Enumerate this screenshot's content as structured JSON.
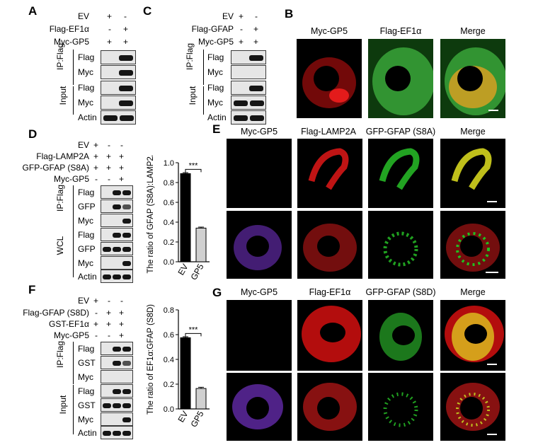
{
  "panels": {
    "A": "A",
    "B": "B",
    "C": "C",
    "D": "D",
    "E": "E",
    "F": "F",
    "G": "G"
  },
  "panel_a": {
    "rows": [
      "EV",
      "Flag-EF1α",
      "Myc-GP5"
    ],
    "signs": [
      [
        "+",
        "-"
      ],
      [
        "-",
        "+"
      ],
      [
        "+",
        "+"
      ]
    ],
    "sections": [
      "IP:Flag",
      "Input"
    ],
    "blots": [
      "Flag",
      "Myc",
      "Flag",
      "Myc",
      "Actin"
    ]
  },
  "panel_c": {
    "rows": [
      "EV",
      "Flag-GFAP",
      "Myc-GP5"
    ],
    "signs": [
      [
        "+",
        "-"
      ],
      [
        "-",
        "+"
      ],
      [
        "+",
        "+"
      ]
    ],
    "sections": [
      "IP:Flag",
      "Input"
    ],
    "blots": [
      "Flag",
      "Myc",
      "Flag",
      "Myc",
      "Actin"
    ]
  },
  "panel_b": {
    "captions": [
      "Myc-GP5",
      "Flag-EF1α",
      "Merge"
    ]
  },
  "panel_d": {
    "rows": [
      "EV",
      "Flag-LAMP2A",
      "GFP-GFAP (S8A)",
      "Myc-GP5"
    ],
    "signs": [
      [
        "+",
        "-",
        "-"
      ],
      [
        "+",
        "+",
        "+"
      ],
      [
        "+",
        "+",
        "+"
      ],
      [
        "-",
        "-",
        "+"
      ]
    ],
    "sections": [
      "IP:Flag",
      "WCL"
    ],
    "blots": [
      "Flag",
      "GFP",
      "Myc",
      "Flag",
      "GFP",
      "Myc",
      "Actin"
    ]
  },
  "panel_e": {
    "captions": [
      "Myc-GP5",
      "Flag-LAMP2A",
      "GFP-GFAP (S8A)",
      "Merge"
    ]
  },
  "panel_f": {
    "rows": [
      "EV",
      "Flag-GFAP (S8D)",
      "GST-EF1α",
      "Myc-GP5"
    ],
    "signs": [
      [
        "+",
        "-",
        "-"
      ],
      [
        "-",
        "+",
        "+"
      ],
      [
        "+",
        "+",
        "+"
      ],
      [
        "-",
        "-",
        "+"
      ]
    ],
    "sections": [
      "IP:Flag",
      "Input"
    ],
    "blots": [
      "Flag",
      "GST",
      "Myc",
      "Flag",
      "GST",
      "Myc",
      "Actin"
    ]
  },
  "panel_g": {
    "captions": [
      "Myc-GP5",
      "Flag-EF1α",
      "GFP-GFAP (S8D)",
      "Merge"
    ]
  },
  "chart_data": [
    {
      "type": "bar",
      "categories": [
        "EV",
        "GP5"
      ],
      "values": [
        0.89,
        0.34
      ],
      "errors": [
        0.01,
        0.01
      ],
      "ylabel": "The ratio of GFAP (S8A):LAMP2A",
      "ylim": [
        0,
        1.0
      ],
      "yticks": [
        "0.0",
        "0.2",
        "0.4",
        "0.6",
        "0.8",
        "1.0"
      ],
      "significance": "***",
      "colors": [
        "#000000",
        "#d0d0d0"
      ]
    },
    {
      "type": "bar",
      "categories": [
        "EV",
        "GP5"
      ],
      "values": [
        0.575,
        0.165
      ],
      "errors": [
        0.008,
        0.01
      ],
      "ylabel": "The ratio of EF1α:GFAP (S8D)",
      "ylim": [
        0,
        0.8
      ],
      "yticks": [
        "0.0",
        "0.2",
        "0.4",
        "0.6",
        "0.8"
      ],
      "significance": "***",
      "colors": [
        "#000000",
        "#d0d0d0"
      ]
    }
  ]
}
